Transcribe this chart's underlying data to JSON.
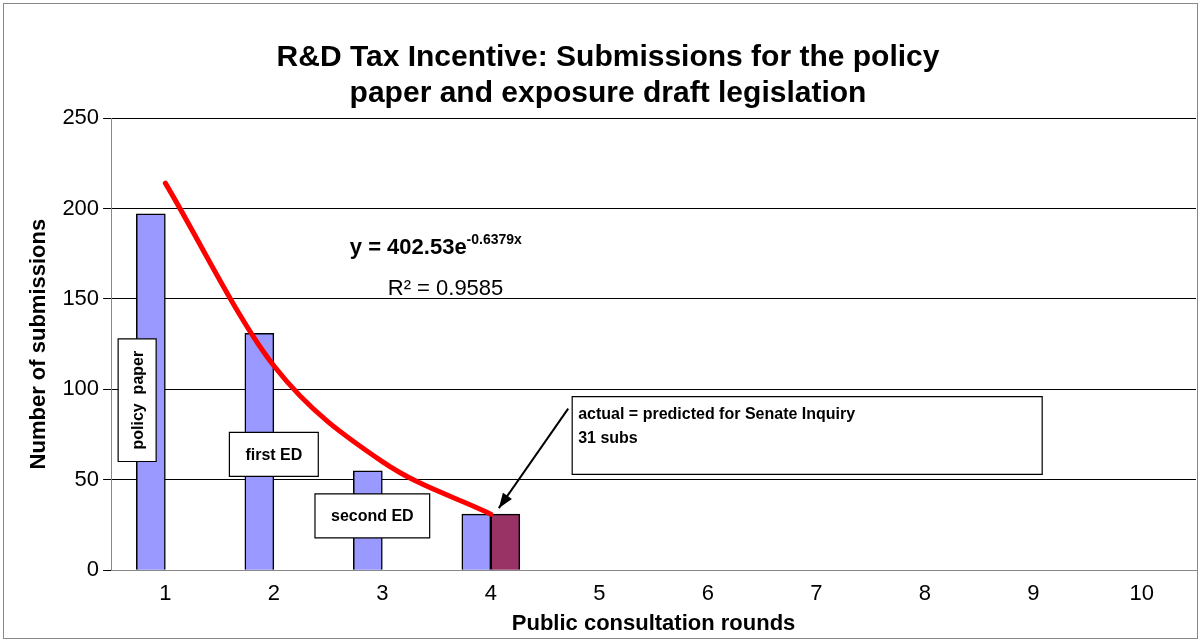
{
  "chart_data": {
    "type": "bar",
    "title": "R&D Tax Incentive: Submissions for the policy paper and exposure draft legislation",
    "xlabel": "Public consultation rounds",
    "ylabel": "Number of submissions",
    "categories": [
      "1",
      "2",
      "3",
      "4",
      "5",
      "6",
      "7",
      "8",
      "9",
      "10"
    ],
    "series": [
      {
        "color": "#9999ff",
        "values": [
          197,
          131,
          55,
          31,
          null,
          null,
          null,
          null,
          null,
          null
        ]
      },
      {
        "color": "#993366",
        "values": [
          null,
          null,
          null,
          31,
          null,
          null,
          null,
          null,
          null,
          null
        ]
      },
      {
        "type": "line",
        "color": "#ff0000",
        "values": [
          214,
          113,
          60,
          31,
          null,
          null,
          null,
          null,
          null,
          null
        ]
      }
    ],
    "ylim": [
      0,
      250
    ],
    "yticks": [
      0,
      50,
      100,
      150,
      200,
      250
    ],
    "grid": "y",
    "legend": false,
    "annotations": [
      "y = 402.53e$^{-0.6379x}$",
      "R² = 0.9585",
      "policy  paper",
      "first ED",
      "second ED",
      "actual = predicted for Senate Inquiry\n31 subs"
    ]
  }
}
